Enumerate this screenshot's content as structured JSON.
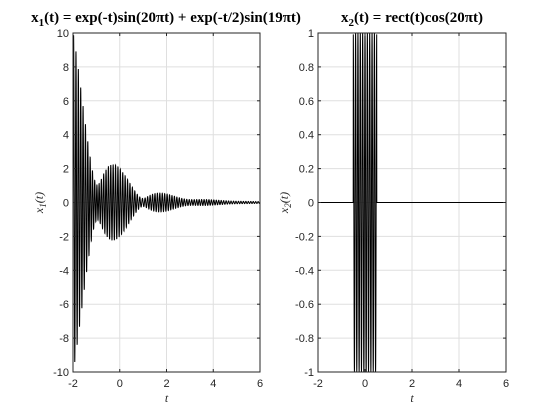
{
  "chart_data": [
    {
      "type": "line",
      "title_parts": [
        {
          "t": "x",
          "sub": false
        },
        {
          "t": "1",
          "sub": true
        },
        {
          "t": "(t) = exp(-t)sin(20πt) + exp(-t/2)sin(19πt)",
          "sub": false
        }
      ],
      "ylabel_base": "x",
      "ylabel_sub": "1",
      "ylabel_tail": "(t)",
      "xlabel": "t",
      "xlim": [
        -2,
        6
      ],
      "ylim": [
        -10,
        10
      ],
      "xticks": [
        "-2",
        "0",
        "2",
        "4",
        "6"
      ],
      "yticks": [
        "10",
        "8",
        "6",
        "4",
        "2",
        "0",
        "-2",
        "-4",
        "-6",
        "-8",
        "-10"
      ],
      "grid": true,
      "series": [
        {
          "expression": "exp(-t)sin(20πt) + exp(-t/2)sin(19πt)",
          "t_range": [
            -2,
            6
          ],
          "color": "#000000"
        }
      ]
    },
    {
      "type": "line",
      "title_parts": [
        {
          "t": "x",
          "sub": false
        },
        {
          "t": "2",
          "sub": true
        },
        {
          "t": "(t) = rect(t)cos(20πt)",
          "sub": false
        }
      ],
      "ylabel_base": "x",
      "ylabel_sub": "2",
      "ylabel_tail": "(t)",
      "xlabel": "t",
      "xlim": [
        -2,
        6
      ],
      "ylim": [
        -1,
        1
      ],
      "xticks": [
        "-2",
        "0",
        "2",
        "4",
        "6"
      ],
      "yticks": [
        "1",
        "0.8",
        "0.6",
        "0.4",
        "0.2",
        "0",
        "-0.2",
        "-0.4",
        "-0.6",
        "-0.8",
        "-1"
      ],
      "grid": true,
      "series": [
        {
          "expression": "rect(t)cos(20πt)",
          "t_range": [
            -2,
            6
          ],
          "color": "#000000"
        }
      ]
    }
  ]
}
